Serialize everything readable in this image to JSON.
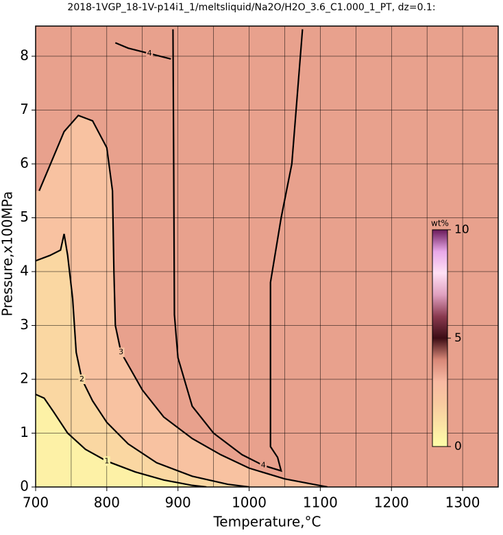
{
  "chart_data": {
    "type": "contour",
    "title": "2018-1VGP_18-1V-p14i1_1/meltsliquid/Na2O/H2O_3.6_C1.000_1_PT, dz=0.1:",
    "x_label": "Temperature,°C",
    "y_label": "Pressure,x100MPa",
    "xlim": [
      700,
      1350
    ],
    "ylim": [
      0,
      8.56
    ],
    "xticks": [
      700,
      800,
      900,
      1000,
      1100,
      1200,
      1300
    ],
    "xminorticks": [
      750,
      850,
      950,
      1050,
      1150,
      1250
    ],
    "yticks": [
      0,
      1,
      2,
      3,
      4,
      5,
      6,
      7,
      8
    ],
    "grid": true,
    "colorbar": {
      "label": "wt%",
      "lim": [
        0,
        10
      ],
      "ticks": [
        0,
        5,
        10
      ],
      "colors": [
        "#ffffa8",
        "#fbe3a4",
        "#f8caa0",
        "#f8b9a2",
        "#d88878",
        "#3c0c14",
        "#8a3a50",
        "#e0a0c0",
        "#ffe0f4",
        "#e8a8e8",
        "#6a1a5a"
      ]
    },
    "contours": [
      {
        "level": 1,
        "x": [
          700,
          712,
          725,
          745,
          770,
          800,
          840,
          880,
          920,
          940
        ],
        "y": [
          1.72,
          1.65,
          1.4,
          1.0,
          0.7,
          0.48,
          0.28,
          0.13,
          0.03,
          0
        ]
      },
      {
        "level": 2,
        "x": [
          700,
          720,
          735,
          740,
          745,
          752,
          757,
          765,
          780,
          800,
          830,
          870,
          920,
          970,
          1000
        ],
        "y": [
          4.2,
          4.3,
          4.4,
          4.7,
          4.3,
          3.5,
          2.5,
          2.0,
          1.6,
          1.2,
          0.8,
          0.45,
          0.2,
          0.05,
          0
        ]
      },
      {
        "level": 3,
        "x": [
          705,
          740,
          760,
          780,
          800,
          808,
          810,
          812,
          820,
          850,
          880,
          920,
          960,
          1000,
          1050,
          1090,
          1110
        ],
        "y": [
          5.5,
          6.6,
          6.9,
          6.8,
          6.3,
          5.5,
          4.0,
          3.0,
          2.5,
          1.8,
          1.3,
          0.9,
          0.6,
          0.35,
          0.15,
          0.05,
          0
        ]
      },
      {
        "level": 4,
        "x": [
          893,
          894,
          895,
          900,
          920,
          950,
          990,
          1020,
          1045,
          1040,
          1030,
          1030,
          1045,
          1060,
          1075
        ],
        "y": [
          8.5,
          6,
          3.2,
          2.4,
          1.5,
          1.0,
          0.6,
          0.4,
          0.3,
          0.55,
          0.75,
          3.8,
          5,
          6,
          8.5
        ]
      },
      {
        "level": 4,
        "x": [
          812,
          830,
          860,
          890
        ],
        "y": [
          8.25,
          8.15,
          8.05,
          7.95
        ]
      }
    ]
  }
}
